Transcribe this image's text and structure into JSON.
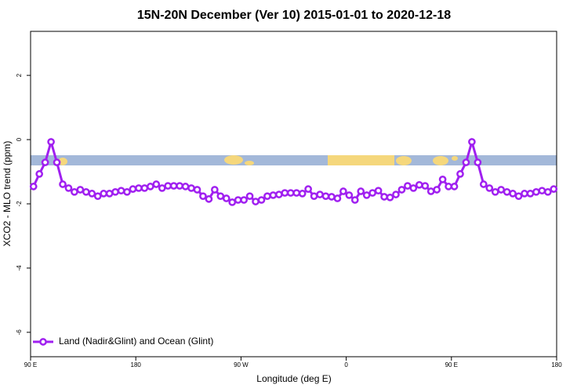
{
  "chart_data": {
    "type": "line",
    "title": "15N-20N December (Ver 10)   2015-01-01 to 2020-12-18",
    "x_label": "Longitude (deg E)",
    "y_label": "XCO2 - MLO trend (ppm)",
    "x": [
      92.5,
      97.5,
      102.5,
      107.5,
      112.5,
      117.5,
      122.5,
      127.5,
      132.5,
      137.5,
      142.5,
      147.5,
      152.5,
      157.5,
      162.5,
      167.5,
      172.5,
      177.5,
      182.5,
      187.5,
      192.5,
      197.5,
      202.5,
      207.5,
      212.5,
      217.5,
      222.5,
      227.5,
      232.5,
      237.5,
      242.5,
      247.5,
      252.5,
      257.5,
      262.5,
      267.5,
      272.5,
      277.5,
      282.5,
      287.5,
      292.5,
      297.5,
      302.5,
      307.5,
      312.5,
      317.5,
      322.5,
      327.5,
      332.5,
      337.5,
      342.5,
      347.5,
      352.5,
      357.5,
      362.5,
      367.5,
      372.5,
      377.5,
      382.5,
      387.5,
      392.5,
      397.5,
      402.5,
      407.5,
      412.5,
      417.5,
      422.5,
      427.5,
      432.5,
      437.5,
      442.5,
      447.5,
      452.5,
      457.5,
      462.5,
      467.5,
      472.5,
      477.5,
      482.5,
      487.5,
      492.5,
      497.5,
      502.5,
      507.5,
      512.5,
      517.5,
      522.5,
      527.5,
      532.5,
      537.5
    ],
    "series": [
      {
        "name": "Land (Nadir&Glint) and Ocean (Glint)",
        "color": "#a020f0",
        "values": [
          -1.46,
          -1.07,
          -0.71,
          -0.07,
          -0.71,
          -1.39,
          -1.51,
          -1.63,
          -1.56,
          -1.63,
          -1.68,
          -1.76,
          -1.68,
          -1.68,
          -1.63,
          -1.59,
          -1.63,
          -1.54,
          -1.51,
          -1.51,
          -1.46,
          -1.39,
          -1.51,
          -1.44,
          -1.44,
          -1.44,
          -1.46,
          -1.51,
          -1.56,
          -1.76,
          -1.85,
          -1.56,
          -1.76,
          -1.83,
          -1.95,
          -1.88,
          -1.88,
          -1.76,
          -1.93,
          -1.88,
          -1.76,
          -1.73,
          -1.71,
          -1.66,
          -1.66,
          -1.66,
          -1.68,
          -1.54,
          -1.76,
          -1.71,
          -1.76,
          -1.78,
          -1.83,
          -1.61,
          -1.73,
          -1.88,
          -1.61,
          -1.73,
          -1.66,
          -1.59,
          -1.78,
          -1.8,
          -1.71,
          -1.56,
          -1.44,
          -1.51,
          -1.41,
          -1.44,
          -1.61,
          -1.56,
          -1.24,
          -1.46,
          -1.46,
          -1.07,
          -0.71,
          -0.07,
          -0.71,
          -1.39,
          -1.51,
          -1.63,
          -1.56,
          -1.63,
          -1.68,
          -1.76,
          -1.68,
          -1.68,
          -1.63,
          -1.59,
          -1.63,
          -1.54
        ]
      }
    ],
    "xlim": [
      90,
      540
    ],
    "xticks": [
      {
        "value": 90,
        "label": "90 E"
      },
      180,
      {
        "value": 270,
        "label": "90 W"
      },
      {
        "value": 360,
        "label": "0"
      },
      {
        "value": 450,
        "label": "90 E"
      },
      {
        "value": 540,
        "label": "180"
      }
    ],
    "ylim": [
      -6.76,
      3.37
    ],
    "yticks": [
      -6,
      -4,
      -2,
      0,
      2
    ],
    "legend": "bottom-left"
  }
}
